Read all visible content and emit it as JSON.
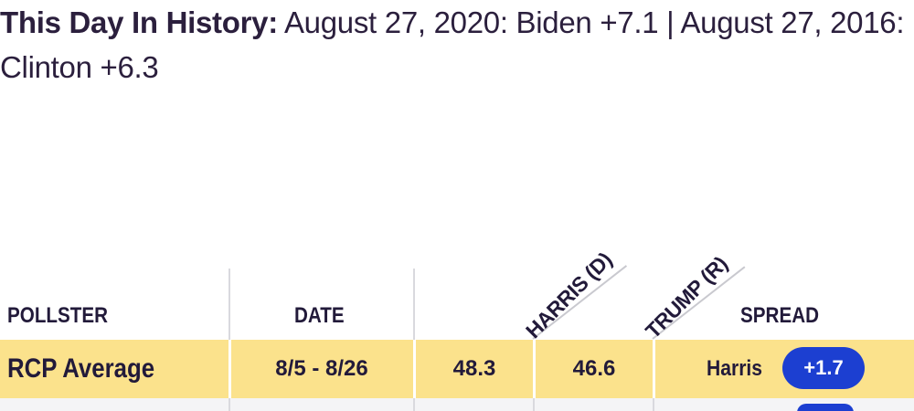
{
  "history": {
    "label": "This Day In History:",
    "text": " August 27, 2020: Biden +7.1 | August 27, 2016: Clinton +6.3"
  },
  "table": {
    "headers": {
      "pollster": "POLLSTER",
      "date": "DATE",
      "harris": "HARRIS (D)",
      "trump": "TRUMP (R)",
      "spread": "SPREAD"
    },
    "rows": [
      {
        "pollster": "RCP Average",
        "date": "8/5 - 8/26",
        "harris": "48.3",
        "trump": "46.6",
        "spread_winner": "Harris",
        "spread_value": "+1.7"
      }
    ]
  },
  "colors": {
    "text": "#221a3a",
    "average_row_bg": "#fbe28c",
    "spread_pill": "#1c3fd1"
  }
}
